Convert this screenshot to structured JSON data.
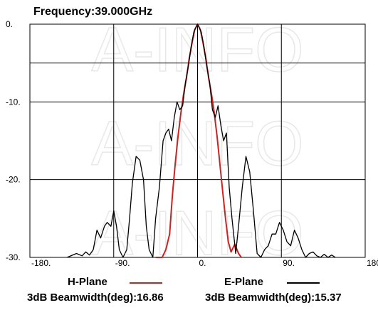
{
  "chart_data": {
    "type": "line",
    "title": "Frequency:39.000GHz",
    "x_ticks": [
      "-180.",
      "-90.",
      "0.",
      "90.",
      "180."
    ],
    "y_ticks": [
      "0.",
      "-10.",
      "-20.",
      "-30."
    ],
    "xlim": [
      -180,
      180
    ],
    "ylim": [
      -30,
      0
    ],
    "grid": true,
    "watermark": "A-INFO",
    "series": [
      {
        "name": "H-Plane",
        "color": "#cc2222",
        "beamwidth_label": "3dB Beamwidth(deg):16.86",
        "x": [
          -45,
          -38,
          -34,
          -30,
          -27,
          -24,
          -21,
          -18,
          -15,
          -12,
          -9,
          -6,
          -3,
          0,
          3,
          6,
          9,
          12,
          15,
          18,
          21,
          24,
          27,
          30,
          33,
          36,
          40,
          44,
          47
        ],
        "y": [
          -30,
          -30,
          -29,
          -27,
          -22,
          -18,
          -14.5,
          -11.5,
          -9,
          -7,
          -4.5,
          -2.5,
          -0.7,
          0,
          -0.7,
          -2.5,
          -4.5,
          -7,
          -9,
          -11.5,
          -14.5,
          -18,
          -21.5,
          -25,
          -28,
          -29.3,
          -28.3,
          -29.5,
          -30
        ]
      },
      {
        "name": "E-Plane",
        "color": "#000000",
        "beamwidth_label": "3dB Beamwidth(deg):15.37",
        "x": [
          -140,
          -130,
          -124,
          -120,
          -116,
          -112,
          -108,
          -104,
          -100,
          -97,
          -93,
          -90,
          -87,
          -84,
          -80,
          -76,
          -73,
          -70,
          -66,
          -62,
          -58,
          -55,
          -52,
          -48,
          -45,
          -41,
          -37,
          -34,
          -31,
          -28,
          -25,
          -22,
          -19,
          -16,
          -13,
          -10,
          -7,
          -4,
          0,
          4,
          7,
          10,
          13,
          16,
          19,
          22,
          25,
          28,
          31,
          34,
          37,
          41,
          44,
          48,
          52,
          56,
          60,
          64,
          68,
          72,
          76,
          80,
          84,
          88,
          92,
          96,
          100,
          104,
          108,
          112,
          116,
          120,
          124,
          128,
          132,
          136,
          140,
          144,
          148
        ],
        "y": [
          -30,
          -29.5,
          -29.8,
          -29.3,
          -29.7,
          -29,
          -26.5,
          -27.5,
          -26,
          -25.5,
          -26,
          -24,
          -26,
          -29,
          -30,
          -29,
          -25,
          -20.5,
          -17,
          -17.5,
          -20,
          -26,
          -29,
          -30,
          -25,
          -21,
          -15,
          -14,
          -13.5,
          -15,
          -12,
          -10,
          -11,
          -10.5,
          -7.5,
          -5.5,
          -3,
          -1,
          0,
          -1,
          -3,
          -5.5,
          -7.5,
          -11,
          -12,
          -10.5,
          -13,
          -15,
          -14,
          -21,
          -25,
          -29.5,
          -26,
          -21,
          -17,
          -19,
          -24,
          -29.5,
          -30,
          -29,
          -28.5,
          -27,
          -27,
          -25.5,
          -26.5,
          -28,
          -28.5,
          -26.5,
          -27.5,
          -29,
          -30,
          -29.5,
          -29.3,
          -29.8,
          -30,
          -29.6,
          -30,
          -29.7,
          -30
        ]
      }
    ]
  },
  "legend": {
    "h_plane_label": "H-Plane",
    "h_beamwidth": "3dB Beamwidth(deg):16.86",
    "e_plane_label": "E-Plane",
    "e_beamwidth": "3dB Beamwidth(deg):15.37"
  }
}
